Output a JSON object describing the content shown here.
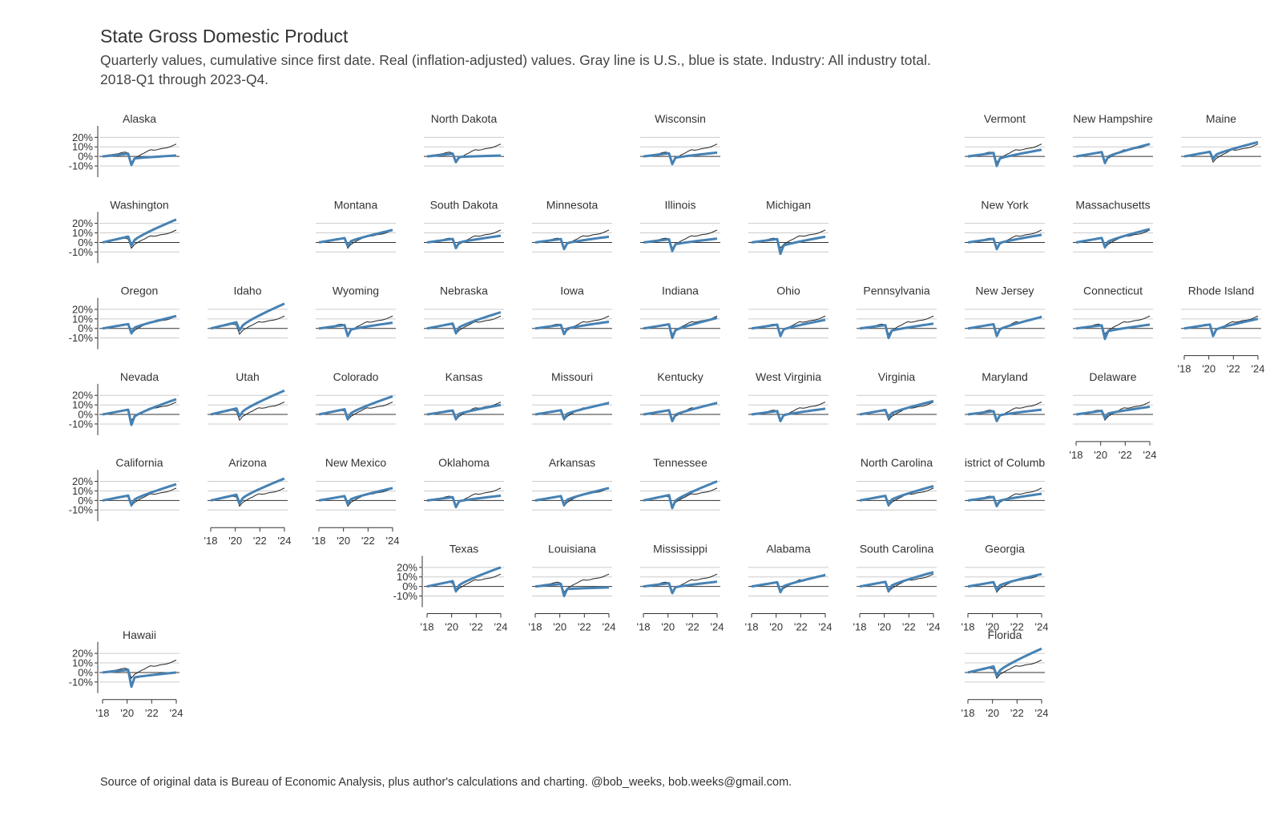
{
  "title": "State Gross Domestic Product",
  "subtitle_line1": "Quarterly values, cumulative since first date. Real (inflation-adjusted) values. Gray line is U.S., blue is state. Industry: All industry total.",
  "subtitle_line2": "2018-Q1 through 2023-Q4.",
  "source": "Source of original data is Bureau of Economic Analysis, plus author's calculations and charting. @bob_weeks, bob.weeks@gmail.com.",
  "colors": {
    "state": "#4682b4",
    "us": "#222222",
    "grid": "#cccccc"
  },
  "chart_data": {
    "type": "line",
    "layout": "small-multiples tile grid",
    "x_tick_labels": [
      "'18",
      "'20",
      "'22",
      "'24"
    ],
    "y_tick_labels": [
      "20%",
      "10%",
      "0%",
      "-10%"
    ],
    "ylim": [
      -0.15,
      0.27
    ],
    "grid": true,
    "us_series_final": 0.13,
    "panels": [
      {
        "name": "Alaska",
        "final": 0.01,
        "low": -0.09
      },
      {
        "name": "North Dakota",
        "final": 0.01,
        "low": -0.06
      },
      {
        "name": "Wisconsin",
        "final": 0.04,
        "low": -0.08
      },
      {
        "name": "Vermont",
        "final": 0.07,
        "low": -0.1
      },
      {
        "name": "New Hampshire",
        "final": 0.13,
        "low": -0.07
      },
      {
        "name": "Maine",
        "final": 0.15,
        "low": -0.03
      },
      {
        "name": "Washington",
        "final": 0.24,
        "low": -0.03
      },
      {
        "name": "Montana",
        "final": 0.13,
        "low": -0.04
      },
      {
        "name": "South Dakota",
        "final": 0.07,
        "low": -0.06
      },
      {
        "name": "Minnesota",
        "final": 0.06,
        "low": -0.07
      },
      {
        "name": "Illinois",
        "final": 0.04,
        "low": -0.09
      },
      {
        "name": "Michigan",
        "final": 0.06,
        "low": -0.12
      },
      {
        "name": "New York",
        "final": 0.08,
        "low": -0.07
      },
      {
        "name": "Massachusetts",
        "final": 0.14,
        "low": -0.05
      },
      {
        "name": "Oregon",
        "final": 0.13,
        "low": -0.05
      },
      {
        "name": "Idaho",
        "final": 0.26,
        "low": -0.02
      },
      {
        "name": "Wyoming",
        "final": 0.06,
        "low": -0.08
      },
      {
        "name": "Nebraska",
        "final": 0.17,
        "low": -0.05
      },
      {
        "name": "Iowa",
        "final": 0.07,
        "low": -0.06
      },
      {
        "name": "Indiana",
        "final": 0.11,
        "low": -0.1
      },
      {
        "name": "Ohio",
        "final": 0.09,
        "low": -0.08
      },
      {
        "name": "Pennsylvania",
        "final": 0.05,
        "low": -0.1
      },
      {
        "name": "New Jersey",
        "final": 0.12,
        "low": -0.08
      },
      {
        "name": "Connecticut",
        "final": 0.04,
        "low": -0.11
      },
      {
        "name": "Rhode Island",
        "final": 0.1,
        "low": -0.08
      },
      {
        "name": "Nevada",
        "final": 0.16,
        "low": -0.11
      },
      {
        "name": "Utah",
        "final": 0.25,
        "low": -0.02
      },
      {
        "name": "Colorado",
        "final": 0.19,
        "low": -0.05
      },
      {
        "name": "Kansas",
        "final": 0.1,
        "low": -0.05
      },
      {
        "name": "Missouri",
        "final": 0.12,
        "low": -0.05
      },
      {
        "name": "Kentucky",
        "final": 0.12,
        "low": -0.07
      },
      {
        "name": "West Virginia",
        "final": 0.06,
        "low": -0.07
      },
      {
        "name": "Virginia",
        "final": 0.14,
        "low": -0.04
      },
      {
        "name": "Maryland",
        "final": 0.05,
        "low": -0.07
      },
      {
        "name": "Delaware",
        "final": 0.08,
        "low": -0.04
      },
      {
        "name": "California",
        "final": 0.17,
        "low": -0.05
      },
      {
        "name": "Arizona",
        "final": 0.23,
        "low": -0.03
      },
      {
        "name": "New Mexico",
        "final": 0.13,
        "low": -0.04
      },
      {
        "name": "Oklahoma",
        "final": 0.05,
        "low": -0.07
      },
      {
        "name": "Arkansas",
        "final": 0.13,
        "low": -0.05
      },
      {
        "name": "Tennessee",
        "final": 0.2,
        "low": -0.08
      },
      {
        "name": "North Carolina",
        "final": 0.15,
        "low": -0.05
      },
      {
        "name": "istrict of Columb",
        "final": 0.07,
        "low": -0.06
      },
      {
        "name": "Texas",
        "final": 0.2,
        "low": -0.05
      },
      {
        "name": "Louisiana",
        "final": -0.01,
        "low": -0.1
      },
      {
        "name": "Mississippi",
        "final": 0.05,
        "low": -0.07
      },
      {
        "name": "Alabama",
        "final": 0.12,
        "low": -0.06
      },
      {
        "name": "South Carolina",
        "final": 0.15,
        "low": -0.05
      },
      {
        "name": "Georgia",
        "final": 0.13,
        "low": -0.04
      },
      {
        "name": "Hawaii",
        "final": 0.0,
        "low": -0.15
      },
      {
        "name": "Florida",
        "final": 0.25,
        "low": -0.04
      }
    ]
  }
}
